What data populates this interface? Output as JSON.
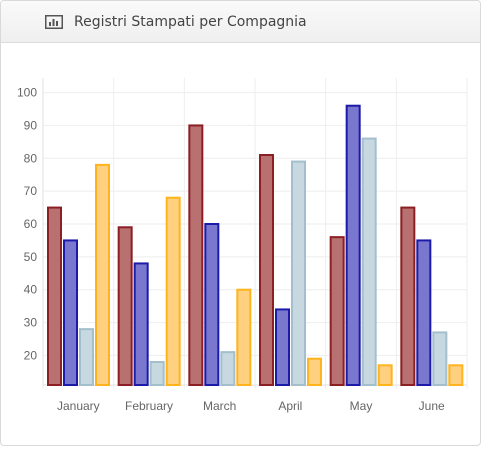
{
  "panel": {
    "title": "Registri Stampati per Compagnia",
    "icon": "bar-chart-icon"
  },
  "chart_data": {
    "type": "bar",
    "categories": [
      "January",
      "February",
      "March",
      "April",
      "May",
      "June"
    ],
    "series": [
      {
        "values": [
          65,
          59,
          90,
          81,
          56,
          65
        ],
        "fill": "#b87070",
        "stroke": "#8b1f24"
      },
      {
        "values": [
          55,
          48,
          60,
          34,
          96,
          55
        ],
        "fill": "#7a77cf",
        "stroke": "#1c1aa8"
      },
      {
        "values": [
          28,
          18,
          21,
          79,
          86,
          27
        ],
        "fill": "#c7d8e0",
        "stroke": "#a3bfcc"
      },
      {
        "values": [
          78,
          68,
          40,
          19,
          17,
          17
        ],
        "fill": "#ffd080",
        "stroke": "#ffb41e"
      }
    ],
    "y_ticks": [
      20,
      30,
      40,
      50,
      60,
      70,
      80,
      90,
      100
    ],
    "ylim": [
      11,
      102
    ],
    "grid": true,
    "title": "",
    "xlabel": "",
    "ylabel": ""
  }
}
